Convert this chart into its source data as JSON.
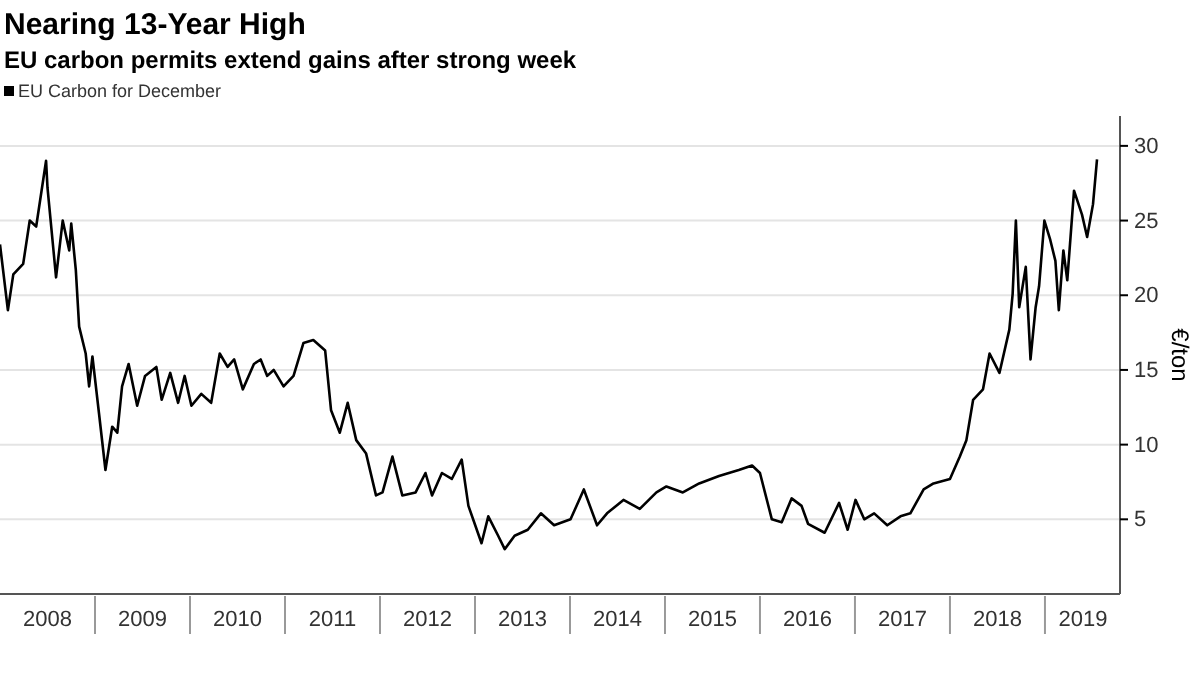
{
  "chart_data": {
    "type": "line",
    "title": "Nearing 13-Year High",
    "subtitle": "EU carbon permits extend gains after strong week",
    "ylabel": "€/ton",
    "legend": "top left",
    "grid": "y",
    "line_style": "solid",
    "marker": "none",
    "xlim": [
      2008,
      2019.79
    ],
    "ylim": [
      0,
      32
    ],
    "yticks": [
      5,
      10,
      15,
      20,
      25,
      30
    ],
    "xticks": [
      {
        "value": 2008.5,
        "label": "2008"
      },
      {
        "value": 2009.5,
        "label": "2009"
      },
      {
        "value": 2010.5,
        "label": "2010"
      },
      {
        "value": 2011.5,
        "label": "2011"
      },
      {
        "value": 2012.5,
        "label": "2012"
      },
      {
        "value": 2013.5,
        "label": "2013"
      },
      {
        "value": 2014.5,
        "label": "2014"
      },
      {
        "value": 2015.5,
        "label": "2015"
      },
      {
        "value": 2016.5,
        "label": "2016"
      },
      {
        "value": 2017.5,
        "label": "2017"
      },
      {
        "value": 2018.5,
        "label": "2018"
      },
      {
        "value": 2019.4,
        "label": "2019"
      }
    ],
    "x": [
      2008.0,
      2008.083,
      2008.14,
      2008.244,
      2008.313,
      2008.381,
      2008.485,
      2008.5,
      2008.59,
      2008.66,
      2008.729,
      2008.75,
      2008.798,
      2008.833,
      2008.902,
      2008.938,
      2008.973,
      2009.042,
      2009.11,
      2009.181,
      2009.235,
      2009.285,
      2009.354,
      2009.444,
      2009.527,
      2009.646,
      2009.702,
      2009.792,
      2009.875,
      2009.944,
      2010.015,
      2010.119,
      2010.223,
      2010.313,
      2010.396,
      2010.465,
      2010.556,
      2010.673,
      2010.744,
      2010.813,
      2010.881,
      2010.985,
      2011.09,
      2011.194,
      2011.298,
      2011.423,
      2011.485,
      2011.577,
      2011.66,
      2011.75,
      2011.854,
      2011.958,
      2012.027,
      2012.131,
      2012.235,
      2012.375,
      2012.479,
      2012.548,
      2012.652,
      2012.756,
      2012.86,
      2012.931,
      2013.069,
      2013.14,
      2013.244,
      2013.313,
      2013.417,
      2013.556,
      2013.694,
      2013.833,
      2014.006,
      2014.146,
      2014.285,
      2014.39,
      2014.563,
      2014.735,
      2014.91,
      2015.015,
      2015.188,
      2015.36,
      2015.569,
      2015.777,
      2015.917,
      2016.0,
      2016.125,
      2016.229,
      2016.333,
      2016.438,
      2016.506,
      2016.681,
      2016.833,
      2016.923,
      2017.006,
      2017.098,
      2017.202,
      2017.34,
      2017.479,
      2017.583,
      2017.723,
      2017.827,
      2018.0,
      2018.104,
      2018.173,
      2018.244,
      2018.348,
      2018.417,
      2018.521,
      2018.625,
      2018.66,
      2018.694,
      2018.729,
      2018.798,
      2018.848,
      2018.902,
      2018.938,
      2018.994,
      2019.056,
      2019.11,
      2019.146,
      2019.194,
      2019.235,
      2019.306,
      2019.39,
      2019.444,
      2019.506,
      2019.548
    ],
    "series": [
      {
        "name": "EU Carbon for December",
        "color": "#000000",
        "values": [
          23.4,
          19.0,
          21.4,
          22.1,
          25,
          24.6,
          29,
          27.2,
          21.2,
          25,
          23,
          24.8,
          21.7,
          17.9,
          16.1,
          13.9,
          15.9,
          12.1,
          8.3,
          11.2,
          10.8,
          13.9,
          15.4,
          12.6,
          14.6,
          15.2,
          13,
          14.8,
          12.8,
          14.6,
          12.6,
          13.4,
          12.8,
          16.1,
          15.2,
          15.7,
          13.7,
          15.4,
          15.7,
          14.6,
          15,
          13.9,
          14.6,
          16.8,
          17,
          16.3,
          12.3,
          10.8,
          12.8,
          10.3,
          9.4,
          6.6,
          6.8,
          9.2,
          6.6,
          6.8,
          8.1,
          6.6,
          8.1,
          7.7,
          9,
          5.9,
          3.4,
          5.2,
          3.9,
          3,
          3.9,
          4.3,
          5.4,
          4.6,
          5,
          7,
          4.6,
          5.4,
          6.3,
          5.7,
          6.8,
          7.2,
          6.8,
          7.4,
          7.9,
          8.3,
          8.6,
          8.1,
          5,
          4.8,
          6.4,
          5.9,
          4.7,
          4.1,
          6.1,
          4.3,
          6.3,
          5,
          5.4,
          4.6,
          5.2,
          5.4,
          7,
          7.4,
          7.7,
          9.2,
          10.3,
          13,
          13.7,
          16.1,
          14.8,
          17.7,
          20.1,
          25,
          19.2,
          21.9,
          15.7,
          19.2,
          20.6,
          25,
          23.7,
          22.3,
          19,
          23,
          21,
          27,
          25.4,
          23.9,
          26.1,
          29.1
        ]
      }
    ]
  }
}
